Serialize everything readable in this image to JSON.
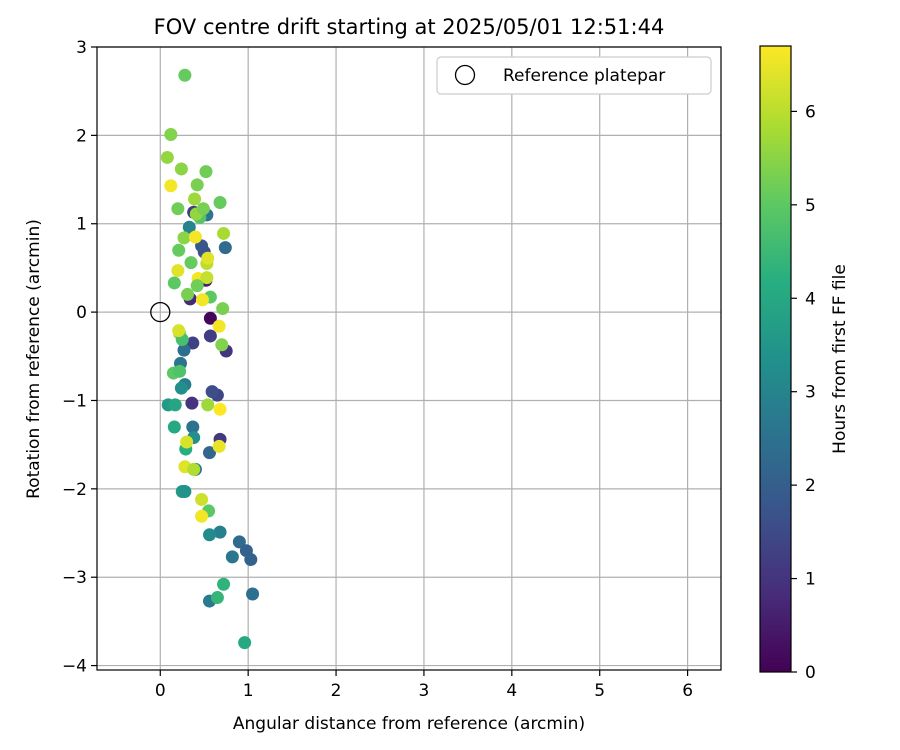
{
  "chart_data": {
    "type": "scatter",
    "title": "FOV centre drift starting at 2025/05/01 12:51:44",
    "xlabel": "Angular distance from reference (arcmin)",
    "ylabel": "Rotation from reference (arcmin)",
    "xlim": [
      -0.72,
      6.38
    ],
    "ylim": [
      -4.05,
      3.0
    ],
    "xticks": [
      "0",
      "1",
      "2",
      "3",
      "4",
      "5",
      "6"
    ],
    "yticks": [
      "3",
      "2",
      "1",
      "0",
      "−1",
      "−2",
      "−3",
      "−4"
    ],
    "xtick_values": [
      0,
      1,
      2,
      3,
      4,
      5,
      6
    ],
    "ytick_values": [
      3,
      2,
      1,
      0,
      -1,
      -2,
      -3,
      -4
    ],
    "grid": true,
    "legend": {
      "label": "Reference platepar",
      "placement": "top-right",
      "marker": "open-circle"
    },
    "reference_point": {
      "x": 0,
      "y": 0
    },
    "colormap": "viridis",
    "colorbar": {
      "label": "Hours from first FF file",
      "range": [
        0,
        6.7
      ],
      "ticks": [
        "0",
        "1",
        "2",
        "3",
        "4",
        "5",
        "6"
      ],
      "tick_values": [
        0,
        1,
        2,
        3,
        4,
        5,
        6
      ]
    },
    "points": [
      {
        "x": 0.57,
        "y": -0.07,
        "t": 0.1
      },
      {
        "x": 0.75,
        "y": -0.44,
        "t": 1.0
      },
      {
        "x": 0.57,
        "y": -0.27,
        "t": 1.2
      },
      {
        "x": 0.68,
        "y": -1.44,
        "t": 1.1
      },
      {
        "x": 0.38,
        "y": 1.13,
        "t": 1.2
      },
      {
        "x": 0.52,
        "y": 0.36,
        "t": 0.5
      },
      {
        "x": 0.34,
        "y": 0.15,
        "t": 0.8
      },
      {
        "x": 0.37,
        "y": -0.35,
        "t": 1.3
      },
      {
        "x": 0.36,
        "y": -1.03,
        "t": 1.0
      },
      {
        "x": 0.65,
        "y": -0.94,
        "t": 1.4
      },
      {
        "x": 0.59,
        "y": -0.9,
        "t": 1.6
      },
      {
        "x": 0.5,
        "y": 0.68,
        "t": 1.7
      },
      {
        "x": 0.74,
        "y": 0.73,
        "t": 2.3
      },
      {
        "x": 0.47,
        "y": 0.75,
        "t": 1.8
      },
      {
        "x": 0.56,
        "y": -1.59,
        "t": 2.2
      },
      {
        "x": 0.37,
        "y": -1.3,
        "t": 2.5
      },
      {
        "x": 0.53,
        "y": 1.1,
        "t": 2.6
      },
      {
        "x": 0.33,
        "y": 0.96,
        "t": 3.0
      },
      {
        "x": 0.23,
        "y": -0.58,
        "t": 2.6
      },
      {
        "x": 0.27,
        "y": -0.43,
        "t": 2.4
      },
      {
        "x": 0.28,
        "y": -0.82,
        "t": 2.8
      },
      {
        "x": 0.24,
        "y": -0.86,
        "t": 3.3
      },
      {
        "x": 0.38,
        "y": -1.42,
        "t": 3.3
      },
      {
        "x": 0.4,
        "y": -1.78,
        "t": 2.7
      },
      {
        "x": 0.25,
        "y": -2.03,
        "t": 3.6
      },
      {
        "x": 0.28,
        "y": -2.03,
        "t": 3.4
      },
      {
        "x": 0.09,
        "y": -1.05,
        "t": 3.6
      },
      {
        "x": 0.17,
        "y": -1.05,
        "t": 3.9
      },
      {
        "x": 0.16,
        "y": -1.3,
        "t": 4.0
      },
      {
        "x": 0.29,
        "y": -1.55,
        "t": 4.2
      },
      {
        "x": 0.9,
        "y": -2.6,
        "t": 2.3
      },
      {
        "x": 0.98,
        "y": -2.7,
        "t": 2.1
      },
      {
        "x": 1.03,
        "y": -2.8,
        "t": 2.1
      },
      {
        "x": 0.82,
        "y": -2.77,
        "t": 2.6
      },
      {
        "x": 0.68,
        "y": -2.49,
        "t": 2.9
      },
      {
        "x": 0.56,
        "y": -2.52,
        "t": 3.2
      },
      {
        "x": 1.05,
        "y": -3.19,
        "t": 2.4
      },
      {
        "x": 0.56,
        "y": -3.27,
        "t": 2.7
      },
      {
        "x": 0.72,
        "y": -3.08,
        "t": 4.3
      },
      {
        "x": 0.65,
        "y": -3.23,
        "t": 4.4
      },
      {
        "x": 0.96,
        "y": -3.74,
        "t": 4.0
      },
      {
        "x": 0.55,
        "y": -2.25,
        "t": 5.0
      },
      {
        "x": 0.47,
        "y": -2.12,
        "t": 6.2
      },
      {
        "x": 0.47,
        "y": -2.31,
        "t": 6.6
      },
      {
        "x": 0.28,
        "y": -1.75,
        "t": 6.4
      },
      {
        "x": 0.38,
        "y": -1.78,
        "t": 5.9
      },
      {
        "x": 0.3,
        "y": -1.47,
        "t": 6.3
      },
      {
        "x": 0.67,
        "y": -1.52,
        "t": 6.5
      },
      {
        "x": 0.68,
        "y": -1.1,
        "t": 6.7
      },
      {
        "x": 0.54,
        "y": -1.05,
        "t": 5.7
      },
      {
        "x": 0.15,
        "y": -0.69,
        "t": 5.0
      },
      {
        "x": 0.22,
        "y": -0.67,
        "t": 4.8
      },
      {
        "x": 0.22,
        "y": -0.24,
        "t": 5.6
      },
      {
        "x": 0.25,
        "y": -0.31,
        "t": 4.7
      },
      {
        "x": 0.21,
        "y": -0.21,
        "t": 6.3
      },
      {
        "x": 0.7,
        "y": -0.37,
        "t": 5.4
      },
      {
        "x": 0.67,
        "y": -0.16,
        "t": 6.6
      },
      {
        "x": 0.71,
        "y": 0.04,
        "t": 5.3
      },
      {
        "x": 0.57,
        "y": 0.17,
        "t": 5.0
      },
      {
        "x": 0.48,
        "y": 0.14,
        "t": 6.6
      },
      {
        "x": 0.31,
        "y": 0.2,
        "t": 5.3
      },
      {
        "x": 0.16,
        "y": 0.33,
        "t": 5.0
      },
      {
        "x": 0.2,
        "y": 0.47,
        "t": 6.4
      },
      {
        "x": 0.35,
        "y": 0.56,
        "t": 5.1
      },
      {
        "x": 0.43,
        "y": 0.38,
        "t": 6.6
      },
      {
        "x": 0.53,
        "y": 0.39,
        "t": 6.1
      },
      {
        "x": 0.53,
        "y": 0.55,
        "t": 6.0
      },
      {
        "x": 0.54,
        "y": 0.61,
        "t": 6.4
      },
      {
        "x": 0.42,
        "y": 0.3,
        "t": 5.2
      },
      {
        "x": 0.21,
        "y": 0.7,
        "t": 5.1
      },
      {
        "x": 0.27,
        "y": 0.84,
        "t": 5.5
      },
      {
        "x": 0.4,
        "y": 0.85,
        "t": 6.6
      },
      {
        "x": 0.72,
        "y": 0.89,
        "t": 5.8
      },
      {
        "x": 0.45,
        "y": 1.07,
        "t": 4.9
      },
      {
        "x": 0.41,
        "y": 1.11,
        "t": 5.6
      },
      {
        "x": 0.49,
        "y": 1.17,
        "t": 5.3
      },
      {
        "x": 0.39,
        "y": 1.28,
        "t": 5.7
      },
      {
        "x": 0.2,
        "y": 1.17,
        "t": 5.2
      },
      {
        "x": 0.68,
        "y": 1.24,
        "t": 5.1
      },
      {
        "x": 0.42,
        "y": 1.44,
        "t": 5.3
      },
      {
        "x": 0.52,
        "y": 1.59,
        "t": 5.2
      },
      {
        "x": 0.24,
        "y": 1.62,
        "t": 5.5
      },
      {
        "x": 0.12,
        "y": 1.43,
        "t": 6.6
      },
      {
        "x": 0.08,
        "y": 1.75,
        "t": 5.6
      },
      {
        "x": 0.12,
        "y": 2.01,
        "t": 5.4
      },
      {
        "x": 0.28,
        "y": 2.68,
        "t": 5.1
      }
    ]
  }
}
